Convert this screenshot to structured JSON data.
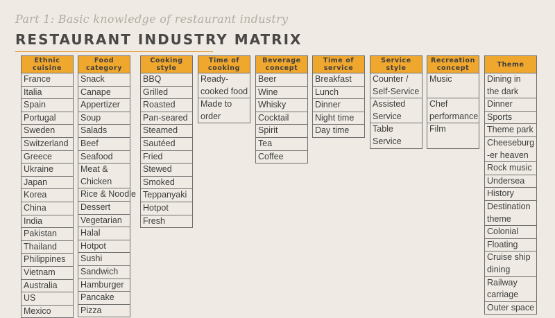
{
  "subtitle": "Part 1: Basic knowledge of restaurant industry",
  "title": "RESTAURANT INDUSTRY MATRIX",
  "columns": [
    {
      "header": [
        "Ethnic",
        "cuisine"
      ],
      "cells": [
        [
          "France"
        ],
        [
          "Italia"
        ],
        [
          "Spain"
        ],
        [
          "Portugal"
        ],
        [
          "Sweden"
        ],
        [
          "Switzerland"
        ],
        [
          "Greece"
        ],
        [
          "Ukraine"
        ],
        [
          "Japan"
        ],
        [
          "Korea"
        ],
        [
          "China"
        ],
        [
          "India"
        ],
        [
          "Pakistan"
        ],
        [
          "Thailand"
        ],
        [
          "Philippines"
        ],
        [
          "Vietnam"
        ],
        [
          "Australia"
        ],
        [
          "US"
        ],
        [
          "Mexico"
        ]
      ]
    },
    {
      "header": [
        "Food",
        "category"
      ],
      "cells": [
        [
          "Snack"
        ],
        [
          "Canape"
        ],
        [
          "Appertizer"
        ],
        [
          "Soup"
        ],
        [
          "Salads"
        ],
        [
          "Beef"
        ],
        [
          "Seafood"
        ],
        [
          "Meat &",
          "Chicken"
        ],
        [
          "Rice & Noodle"
        ],
        [
          "Dessert"
        ],
        [
          "Vegetarian"
        ],
        [
          "Halal"
        ],
        [
          "Hotpot"
        ],
        [
          "Sushi"
        ],
        [
          "Sandwich"
        ],
        [
          "Hamburger"
        ],
        [
          "Pancake"
        ],
        [
          "Pizza"
        ]
      ]
    },
    {
      "header": [
        "Cooking",
        "style"
      ],
      "cells": [
        [
          "BBQ"
        ],
        [
          "Grilled"
        ],
        [
          "Roasted"
        ],
        [
          "Pan-seared"
        ],
        [
          "Steamed"
        ],
        [
          "Sautéed"
        ],
        [
          "Fried"
        ],
        [
          "Stewed"
        ],
        [
          "Smoked"
        ],
        [
          "Teppanyaki"
        ],
        [
          "Hotpot"
        ],
        [
          "Fresh"
        ]
      ]
    },
    {
      "header": [
        "Time of",
        "cooking"
      ],
      "cells": [
        [
          "Ready-",
          "cooked food"
        ],
        [
          "Made to",
          "order"
        ]
      ]
    },
    {
      "header": [
        "Beverage",
        "concept"
      ],
      "cells": [
        [
          "Beer"
        ],
        [
          "Wine"
        ],
        [
          "Whisky"
        ],
        [
          "Cocktail"
        ],
        [
          "Spirit"
        ],
        [
          "Tea"
        ],
        [
          "Coffee"
        ]
      ]
    },
    {
      "header": [
        "Time of",
        "service"
      ],
      "cells": [
        [
          "Breakfast"
        ],
        [
          "Lunch"
        ],
        [
          "Dinner"
        ],
        [
          "Night time"
        ],
        [
          "Day time"
        ]
      ]
    },
    {
      "header": [
        "Service",
        "style"
      ],
      "cells": [
        [
          "Counter /",
          "Self-Service"
        ],
        [
          "Assisted",
          "Service"
        ],
        [
          "Table",
          "Service"
        ]
      ]
    },
    {
      "header": [
        "Recreation",
        "concept"
      ],
      "cells": [
        [
          "Music",
          ""
        ],
        [
          "Chef",
          "performance"
        ],
        [
          "Film",
          ""
        ]
      ]
    },
    {
      "header": [
        "Theme"
      ],
      "cells": [
        [
          "Dining in",
          "the dark"
        ],
        [
          "Dinner"
        ],
        [
          "Sports"
        ],
        [
          "Theme park"
        ],
        [
          "Cheeseburg",
          "-er heaven"
        ],
        [
          "Rock music"
        ],
        [
          "Undersea"
        ],
        [
          "History"
        ],
        [
          "Destination",
          "theme"
        ],
        [
          "Colonial"
        ],
        [
          "Floating"
        ],
        [
          "Cruise ship",
          "dining"
        ],
        [
          "Railway",
          "carriage"
        ],
        [
          "Outer space"
        ]
      ]
    }
  ]
}
